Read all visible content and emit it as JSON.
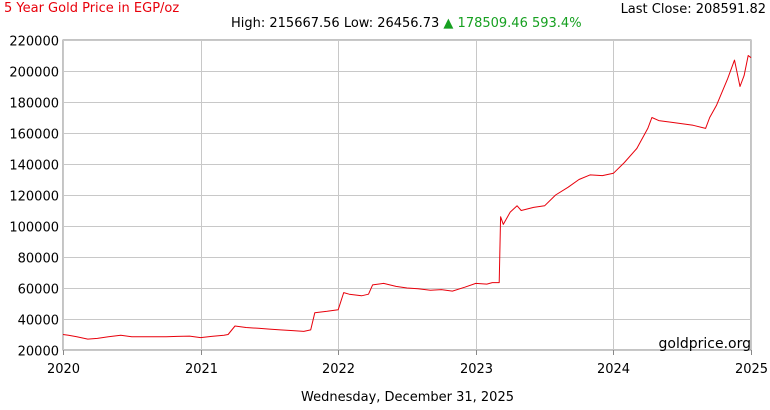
{
  "header": {
    "title": "5 Year Gold Price in EGP/oz",
    "last_close_label": "Last Close: 208591.82",
    "high_low": "High: 215667.56 Low: 26456.73",
    "change_arrow": "▲",
    "change_text": "178509.46 593.4%",
    "change_color": "#16a020"
  },
  "watermark": "goldprice.org",
  "footer": {
    "date": "Wednesday, December 31, 2025"
  },
  "colors": {
    "line": "#e8000b",
    "grid": "#c8c8c8",
    "axis": "#888888"
  },
  "chart_data": {
    "type": "line",
    "title": "5 Year Gold Price in EGP/oz",
    "xlabel": "",
    "ylabel": "",
    "grid": true,
    "xlim": [
      2020.0,
      2025.0
    ],
    "ylim": [
      20000,
      220000
    ],
    "y_ticks": [
      20000,
      40000,
      60000,
      80000,
      100000,
      120000,
      140000,
      160000,
      180000,
      200000,
      220000
    ],
    "x_ticks": [
      {
        "value": 2020,
        "label": "2020"
      },
      {
        "value": 2021,
        "label": "2021"
      },
      {
        "value": 2022,
        "label": "2022"
      },
      {
        "value": 2023,
        "label": "2023"
      },
      {
        "value": 2024,
        "label": "2024"
      },
      {
        "value": 2025,
        "label": "2025"
      }
    ],
    "series": [
      {
        "color": "#e8000b",
        "x": [
          2020.0,
          2020.04,
          2020.1,
          2020.18,
          2020.25,
          2020.33,
          2020.42,
          2020.5,
          2020.58,
          2020.67,
          2020.75,
          2020.83,
          2020.92,
          2021.0,
          2021.08,
          2021.17,
          2021.2,
          2021.25,
          2021.33,
          2021.42,
          2021.5,
          2021.58,
          2021.67,
          2021.75,
          2021.8,
          2021.83,
          2021.92,
          2022.0,
          2022.04,
          2022.08,
          2022.17,
          2022.22,
          2022.25,
          2022.33,
          2022.42,
          2022.5,
          2022.58,
          2022.67,
          2022.75,
          2022.83,
          2022.92,
          2023.0,
          2023.08,
          2023.12,
          2023.17,
          2023.18,
          2023.2,
          2023.25,
          2023.3,
          2023.33,
          2023.42,
          2023.5,
          2023.58,
          2023.67,
          2023.75,
          2023.83,
          2023.92,
          2024.0,
          2024.08,
          2024.17,
          2024.25,
          2024.28,
          2024.33,
          2024.42,
          2024.5,
          2024.58,
          2024.67,
          2024.7,
          2024.75,
          2024.83,
          2024.88,
          2024.92,
          2024.95,
          2024.98,
          2025.0
        ],
        "y": [
          30000,
          29500,
          28500,
          27000,
          27500,
          28500,
          29500,
          28500,
          28500,
          28500,
          28500,
          28800,
          29000,
          28000,
          28800,
          29500,
          30000,
          35500,
          34500,
          34000,
          33500,
          33000,
          32500,
          32000,
          33000,
          44000,
          45000,
          46000,
          57000,
          56000,
          55000,
          56000,
          62000,
          63000,
          61000,
          60000,
          59500,
          58500,
          59000,
          58000,
          60500,
          63000,
          62500,
          63500,
          63500,
          106000,
          101000,
          109000,
          113000,
          110000,
          112000,
          113000,
          120000,
          125000,
          130000,
          133000,
          132500,
          134000,
          141000,
          150000,
          163000,
          170000,
          168000,
          167000,
          166000,
          165000,
          163000,
          170000,
          178000,
          195000,
          207000,
          190000,
          197000,
          210000,
          208592
        ]
      }
    ]
  }
}
